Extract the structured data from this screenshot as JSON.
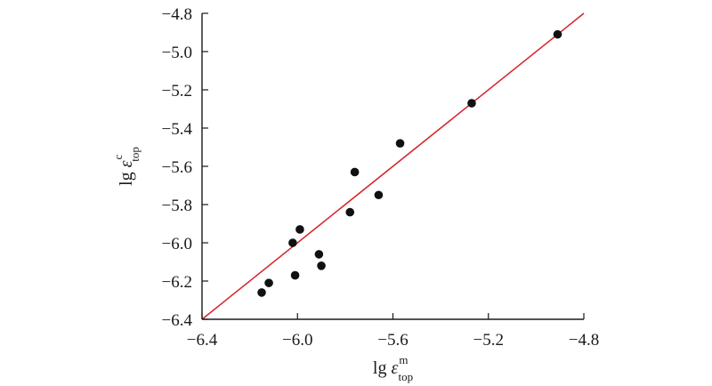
{
  "chart_data": {
    "type": "scatter",
    "xlabel": {
      "base": "lg ",
      "symbol": "ε",
      "sup": "m",
      "sub": "top"
    },
    "ylabel": {
      "base": "lg ",
      "symbol": "ε",
      "sup": "c",
      "sub": "top"
    },
    "xlim": [
      -6.4,
      -4.8
    ],
    "ylim": [
      -6.4,
      -4.8
    ],
    "xticks": [
      -6.4,
      -6.0,
      -5.6,
      -5.2,
      -4.8
    ],
    "yticks": [
      -6.4,
      -6.2,
      -6.0,
      -5.8,
      -5.6,
      -5.4,
      -5.2,
      -5.0,
      -4.8
    ],
    "xtick_labels": [
      "−6.4",
      "−6.0",
      "−5.6",
      "−5.2",
      "−4.8"
    ],
    "ytick_labels": [
      "−6.4",
      "−6.2",
      "−6.0",
      "−5.8",
      "−5.6",
      "−5.4",
      "−5.2",
      "−5.0",
      "−4.8"
    ],
    "grid": false,
    "points": [
      {
        "x": -6.15,
        "y": -6.26
      },
      {
        "x": -6.12,
        "y": -6.21
      },
      {
        "x": -6.02,
        "y": -6.0
      },
      {
        "x": -5.99,
        "y": -5.93
      },
      {
        "x": -6.01,
        "y": -6.17
      },
      {
        "x": -5.91,
        "y": -6.06
      },
      {
        "x": -5.9,
        "y": -6.12
      },
      {
        "x": -5.78,
        "y": -5.84
      },
      {
        "x": -5.76,
        "y": -5.63
      },
      {
        "x": -5.66,
        "y": -5.75
      },
      {
        "x": -5.57,
        "y": -5.48
      },
      {
        "x": -5.27,
        "y": -5.27
      },
      {
        "x": -4.91,
        "y": -4.91
      }
    ],
    "line": {
      "type": "identity",
      "x": [
        -6.4,
        -4.8
      ],
      "y": [
        -6.4,
        -4.8
      ]
    },
    "colors": {
      "point": "#111111",
      "line": "#d62027",
      "axis": "#1a1a1a"
    }
  }
}
